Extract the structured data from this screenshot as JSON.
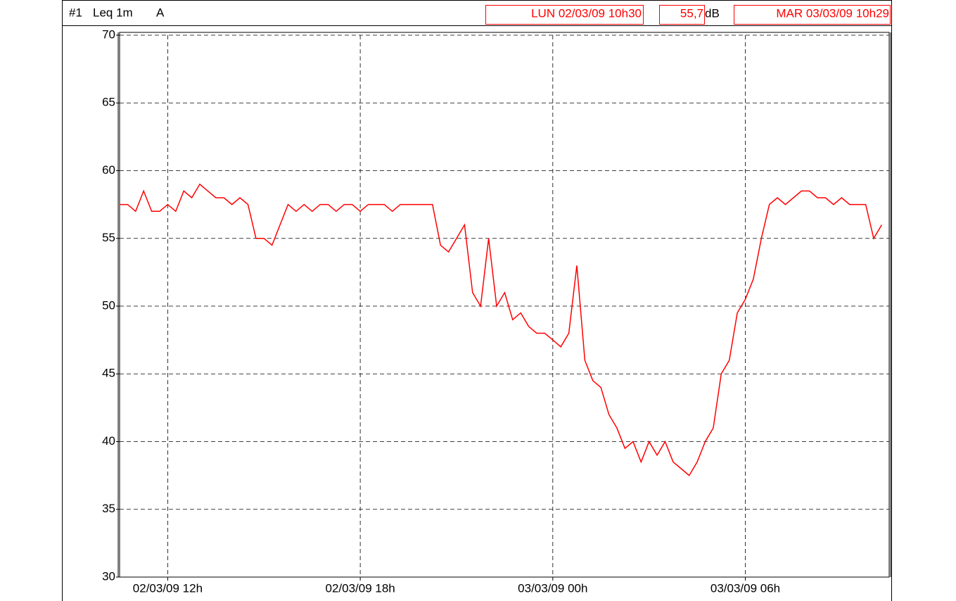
{
  "chart_data": {
    "type": "line",
    "channel": "#1",
    "title": "Leq 1m",
    "weighting": "A",
    "start": "LUN 02/03/09 10h30",
    "cursor_value": "55,7",
    "unit": "dB",
    "end": "MAR 03/03/09 10h29",
    "xlim": [
      10.5,
      34.483
    ],
    "xticks": [
      {
        "value": 12,
        "label": "02/03/09 12h"
      },
      {
        "value": 18,
        "label": "02/03/09 18h"
      },
      {
        "value": 24,
        "label": "03/03/09 00h"
      },
      {
        "value": 30,
        "label": "03/03/09 06h"
      }
    ],
    "ylim": [
      30,
      70
    ],
    "yticks": [
      30,
      35,
      40,
      45,
      50,
      55,
      60,
      65,
      70
    ],
    "grid": true,
    "x": [
      10.5,
      10.75,
      11,
      11.25,
      11.5,
      11.75,
      12,
      12.25,
      12.5,
      12.75,
      13,
      13.25,
      13.5,
      13.75,
      14,
      14.25,
      14.5,
      14.75,
      15,
      15.25,
      15.5,
      15.75,
      16,
      16.25,
      16.5,
      16.75,
      17,
      17.25,
      17.5,
      17.75,
      18,
      18.25,
      18.5,
      18.75,
      19,
      19.25,
      19.5,
      19.75,
      20,
      20.25,
      20.5,
      20.75,
      21,
      21.25,
      21.5,
      21.75,
      22,
      22.25,
      22.5,
      22.75,
      23,
      23.25,
      23.5,
      23.75,
      24,
      24.25,
      24.5,
      24.75,
      25,
      25.25,
      25.5,
      25.75,
      26,
      26.25,
      26.5,
      26.75,
      27,
      27.25,
      27.5,
      27.75,
      28,
      28.25,
      28.5,
      28.75,
      29,
      29.25,
      29.5,
      29.75,
      30,
      30.25,
      30.5,
      30.75,
      31,
      31.25,
      31.5,
      31.75,
      32,
      32.25,
      32.5,
      32.75,
      33,
      33.25,
      33.5,
      33.75,
      34,
      34.25
    ],
    "series": [
      {
        "name": "Leq 1m",
        "color": "#ff0000",
        "values": [
          57.5,
          57.5,
          57,
          58.5,
          57,
          57,
          57.5,
          57,
          58.5,
          58,
          59,
          58.5,
          58,
          58,
          57.5,
          58,
          57.5,
          55,
          55,
          54.5,
          56,
          57.5,
          57,
          57.5,
          57,
          57.5,
          57.5,
          57,
          57.5,
          57.5,
          57,
          57.5,
          57.5,
          57.5,
          57,
          57.5,
          57.5,
          57.5,
          57.5,
          57.5,
          54.5,
          54,
          55,
          56,
          51,
          50,
          55,
          50,
          51,
          49,
          49.5,
          48.5,
          48,
          48,
          47.5,
          47,
          48,
          53,
          46,
          44.5,
          44,
          42,
          41,
          39.5,
          40,
          38.5,
          40,
          39,
          40,
          38.5,
          38,
          37.5,
          38.5,
          40,
          41,
          45,
          46,
          49.5,
          50.5,
          52,
          55,
          57.5,
          58,
          57.5,
          58,
          58.5,
          58.5,
          58,
          58,
          57.5,
          58,
          57.5,
          57.5,
          57.5,
          55,
          56
        ]
      }
    ]
  }
}
